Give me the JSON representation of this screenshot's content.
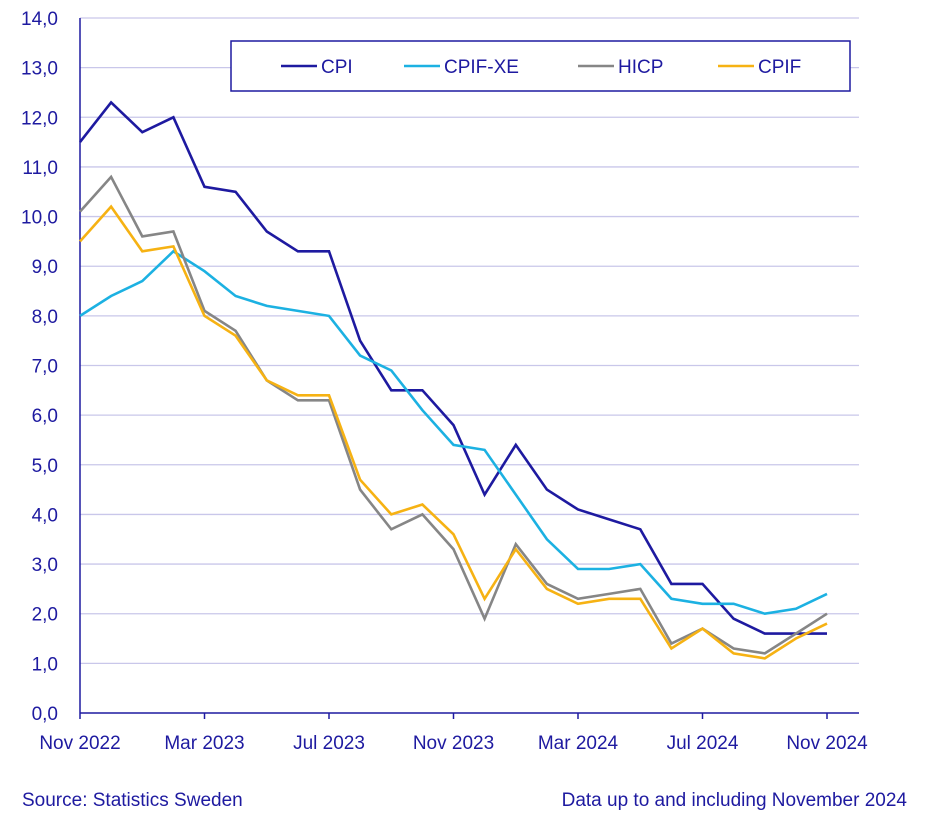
{
  "chart_data": {
    "type": "line",
    "title": "",
    "xlabel": "",
    "ylabel": "",
    "ylim": [
      0,
      14
    ],
    "y_ticks": [
      "0,0",
      "1,0",
      "2,0",
      "3,0",
      "4,0",
      "5,0",
      "6,0",
      "7,0",
      "8,0",
      "9,0",
      "10,0",
      "11,0",
      "12,0",
      "13,0",
      "14,0"
    ],
    "x_tick_labels": [
      {
        "index": 0,
        "label": "Nov 2022"
      },
      {
        "index": 4,
        "label": "Mar 2023"
      },
      {
        "index": 8,
        "label": "Jul 2023"
      },
      {
        "index": 12,
        "label": "Nov 2023"
      },
      {
        "index": 16,
        "label": "Mar 2024"
      },
      {
        "index": 20,
        "label": "Jul 2024"
      },
      {
        "index": 24,
        "label": "Nov 2024"
      }
    ],
    "categories": [
      "Nov 2022",
      "Dec 2022",
      "Jan 2023",
      "Feb 2023",
      "Mar 2023",
      "Apr 2023",
      "May 2023",
      "Jun 2023",
      "Jul 2023",
      "Aug 2023",
      "Sep 2023",
      "Oct 2023",
      "Nov 2023",
      "Dec 2023",
      "Jan 2024",
      "Feb 2024",
      "Mar 2024",
      "Apr 2024",
      "May 2024",
      "Jun 2024",
      "Jul 2024",
      "Aug 2024",
      "Sep 2024",
      "Oct 2024",
      "Nov 2024"
    ],
    "grid": true,
    "legend_position": "top-right",
    "series": [
      {
        "name": "CPI",
        "color": "#1e1aa0",
        "values": [
          11.5,
          12.3,
          11.7,
          12.0,
          10.6,
          10.5,
          9.7,
          9.3,
          9.3,
          7.5,
          6.5,
          6.5,
          5.8,
          4.4,
          5.4,
          4.5,
          4.1,
          3.9,
          3.7,
          2.6,
          2.6,
          1.9,
          1.6,
          1.6,
          1.6
        ]
      },
      {
        "name": "CPIF-XE",
        "color": "#1cb1e2",
        "values": [
          8.0,
          8.4,
          8.7,
          9.3,
          8.9,
          8.4,
          8.2,
          8.1,
          8.0,
          7.2,
          6.9,
          6.1,
          5.4,
          5.3,
          4.4,
          3.5,
          2.9,
          2.9,
          3.0,
          2.3,
          2.2,
          2.2,
          2.0,
          2.1,
          2.4
        ]
      },
      {
        "name": "HICP",
        "color": "#868686",
        "values": [
          10.1,
          10.8,
          9.6,
          9.7,
          8.1,
          7.7,
          6.7,
          6.3,
          6.3,
          4.5,
          3.7,
          4.0,
          3.3,
          1.9,
          3.4,
          2.6,
          2.3,
          2.4,
          2.5,
          1.4,
          1.7,
          1.3,
          1.2,
          1.6,
          2.0
        ]
      },
      {
        "name": "CPIF",
        "color": "#f6b213",
        "values": [
          9.5,
          10.2,
          9.3,
          9.4,
          8.0,
          7.6,
          6.7,
          6.4,
          6.4,
          4.7,
          4.0,
          4.2,
          3.6,
          2.3,
          3.3,
          2.5,
          2.2,
          2.3,
          2.3,
          1.3,
          1.7,
          1.2,
          1.1,
          1.5,
          1.8
        ]
      }
    ]
  },
  "footer": {
    "source": "Source: Statistics Sweden",
    "note": "Data up to and including November 2024"
  },
  "colors": {
    "axis_text": "#1e1aa0",
    "grid": "#c9c7ea",
    "axis_line": "#1e1aa0"
  }
}
